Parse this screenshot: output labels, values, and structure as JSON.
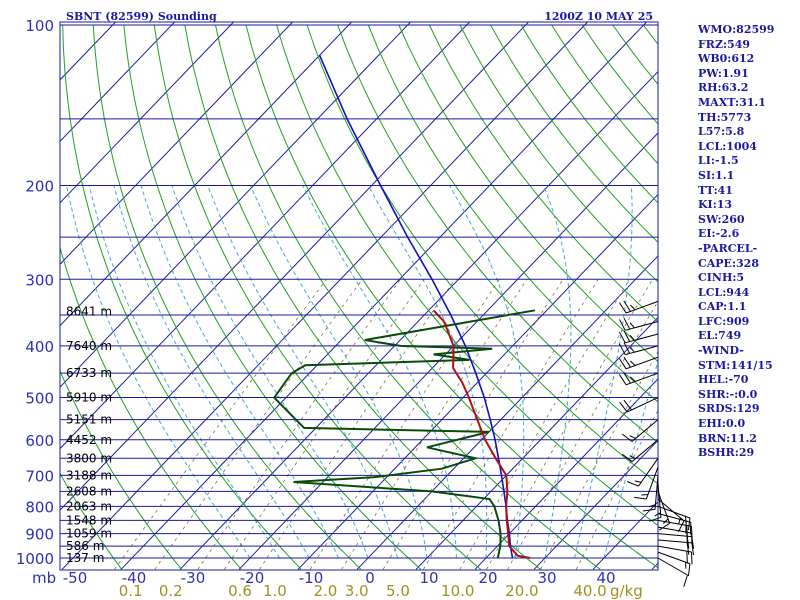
{
  "header": {
    "station": "SBNT (82599) Sounding",
    "time": "1200Z 10 MAY 25"
  },
  "indices": [
    "WMO:82599",
    "FRZ:549",
    "WB0:612",
    "PW:1.91",
    "RH:63.2",
    "MAXT:31.1",
    "TH:5773",
    "L57:5.8",
    "LCL:1004",
    "LI:-1.5",
    "SI:1.1",
    "TT:41",
    "KI:13",
    "SW:260",
    "EI:-2.6",
    "-PARCEL-",
    "CAPE:328",
    "CINH:5",
    "LCL:944",
    "CAP:1.1",
    "LFC:909",
    "EL:749",
    "-WIND-",
    "STM:141/15",
    "HEL:-70",
    "SHR:-:0.0",
    "SRDS:129",
    "EHI:0.0",
    "BRN:11.2",
    "BSHR:29"
  ],
  "colors": {
    "isobar": "#1a1aa0",
    "isotherm": "#1a1aa0",
    "dry_adiabat": "#20a020",
    "moist_adiabat": "#40a8d0",
    "mixing_ratio": "#807040",
    "temperature": "#b01010",
    "dewpoint": "#0a4a0a",
    "parcel": "#1010c0",
    "wind_barb": "#000000"
  },
  "chart_data": {
    "type": "line",
    "diagram": "skew-t log-p",
    "pressure_axis": {
      "unit": "mb",
      "range": [
        1000,
        100
      ],
      "scale": "log",
      "ticks": [
        100,
        200,
        300,
        400,
        500,
        600,
        700,
        800,
        900,
        1000
      ]
    },
    "temperature_axis": {
      "range": [
        -50,
        50
      ],
      "ticks": [
        -50,
        -40,
        -30,
        -20,
        -10,
        0,
        10,
        20,
        30,
        40
      ],
      "tick_labels": [
        "-50",
        "-40",
        "-30",
        "-20",
        "-10",
        "0",
        "10",
        "20",
        "30",
        "40"
      ],
      "skewed": true
    },
    "mixing_ratio_labels": [
      "0.1",
      "0.2",
      "0.6",
      "1.0",
      "2.0",
      "3.0",
      "5.0",
      "10.0",
      "20.0",
      "40.0"
    ],
    "mixing_ratio_values": [
      0.1,
      0.2,
      0.6,
      1.0,
      2.0,
      3.0,
      5.0,
      10.0,
      20.0,
      40.0
    ],
    "mixing_ratio_unit": "g/kg",
    "height_levels": [
      {
        "p": 345,
        "label": "8641 m"
      },
      {
        "p": 400,
        "label": "7640 m"
      },
      {
        "p": 450,
        "label": "6733 m"
      },
      {
        "p": 500,
        "label": "5910 m"
      },
      {
        "p": 550,
        "label": "5151 m"
      },
      {
        "p": 600,
        "label": "4452 m"
      },
      {
        "p": 650,
        "label": "3800 m"
      },
      {
        "p": 700,
        "label": "3188 m"
      },
      {
        "p": 750,
        "label": "2608 m"
      },
      {
        "p": 800,
        "label": "2063 m"
      },
      {
        "p": 850,
        "label": "1548 m"
      },
      {
        "p": 900,
        "label": "1059 m"
      },
      {
        "p": 950,
        "label": "586 m"
      },
      {
        "p": 1000,
        "label": "137 m"
      }
    ],
    "temperature_profile": [
      {
        "p": 1000,
        "t": 27.5
      },
      {
        "p": 990,
        "t": 25.0
      },
      {
        "p": 950,
        "t": 22.0
      },
      {
        "p": 900,
        "t": 19.8
      },
      {
        "p": 850,
        "t": 17.4
      },
      {
        "p": 800,
        "t": 15.0
      },
      {
        "p": 750,
        "t": 12.8
      },
      {
        "p": 700,
        "t": 10.0
      },
      {
        "p": 650,
        "t": 5.4
      },
      {
        "p": 600,
        "t": 0.6
      },
      {
        "p": 550,
        "t": -4.0
      },
      {
        "p": 500,
        "t": -9.0
      },
      {
        "p": 470,
        "t": -12.4
      },
      {
        "p": 440,
        "t": -16.5
      },
      {
        "p": 400,
        "t": -20.0
      },
      {
        "p": 360,
        "t": -25.6
      },
      {
        "p": 343,
        "t": -29.2
      }
    ],
    "dewpoint_profile": [
      {
        "p": 1000,
        "t": 22.0
      },
      {
        "p": 950,
        "t": 20.5
      },
      {
        "p": 900,
        "t": 18.5
      },
      {
        "p": 850,
        "t": 16.0
      },
      {
        "p": 800,
        "t": 13.0
      },
      {
        "p": 775,
        "t": 11.0
      },
      {
        "p": 750,
        "t": 0.0
      },
      {
        "p": 720,
        "t": -25.0
      },
      {
        "p": 705,
        "t": -12.0
      },
      {
        "p": 680,
        "t": -2.0
      },
      {
        "p": 650,
        "t": 2.0
      },
      {
        "p": 620,
        "t": -8.0
      },
      {
        "p": 580,
        "t": 0.0
      },
      {
        "p": 570,
        "t": -32.0
      },
      {
        "p": 500,
        "t": -42.0
      },
      {
        "p": 450,
        "t": -43.0
      },
      {
        "p": 435,
        "t": -42.0
      },
      {
        "p": 425,
        "t": -15.0
      },
      {
        "p": 415,
        "t": -22.0
      },
      {
        "p": 405,
        "t": -13.0
      },
      {
        "p": 400,
        "t": -29.0
      },
      {
        "p": 390,
        "t": -36.0
      },
      {
        "p": 343,
        "t": -12.0
      }
    ],
    "parcel_profile": [
      {
        "p": 1000,
        "t": 24.5
      },
      {
        "p": 950,
        "t": 22.2
      },
      {
        "p": 900,
        "t": 20.0
      },
      {
        "p": 850,
        "t": 17.5
      },
      {
        "p": 800,
        "t": 15.0
      },
      {
        "p": 750,
        "t": 12.2
      },
      {
        "p": 700,
        "t": 9.2
      },
      {
        "p": 650,
        "t": 5.9
      },
      {
        "p": 600,
        "t": 2.3
      },
      {
        "p": 550,
        "t": -1.8
      },
      {
        "p": 500,
        "t": -6.4
      },
      {
        "p": 450,
        "t": -11.8
      },
      {
        "p": 400,
        "t": -18.0
      },
      {
        "p": 350,
        "t": -25.5
      },
      {
        "p": 300,
        "t": -34.5
      },
      {
        "p": 250,
        "t": -45.5
      },
      {
        "p": 200,
        "t": -58.5
      },
      {
        "p": 150,
        "t": -75.0
      },
      {
        "p": 114,
        "t": -90.0
      }
    ],
    "wind_barbs": [
      {
        "p": 1000,
        "dir": 120,
        "kt": 10
      },
      {
        "p": 975,
        "dir": 110,
        "kt": 15
      },
      {
        "p": 950,
        "dir": 100,
        "kt": 20
      },
      {
        "p": 925,
        "dir": 95,
        "kt": 20
      },
      {
        "p": 900,
        "dir": 95,
        "kt": 20
      },
      {
        "p": 875,
        "dir": 100,
        "kt": 20
      },
      {
        "p": 850,
        "dir": 100,
        "kt": 20
      },
      {
        "p": 825,
        "dir": 105,
        "kt": 20
      },
      {
        "p": 800,
        "dir": 110,
        "kt": 15
      },
      {
        "p": 775,
        "dir": 130,
        "kt": 15
      },
      {
        "p": 750,
        "dir": 160,
        "kt": 15
      },
      {
        "p": 725,
        "dir": 175,
        "kt": 15
      },
      {
        "p": 700,
        "dir": 185,
        "kt": 15
      },
      {
        "p": 675,
        "dir": 200,
        "kt": 15
      },
      {
        "p": 650,
        "dir": 215,
        "kt": 15
      },
      {
        "p": 600,
        "dir": 230,
        "kt": 15
      },
      {
        "p": 550,
        "dir": 230,
        "kt": 15
      },
      {
        "p": 500,
        "dir": 245,
        "kt": 20
      },
      {
        "p": 450,
        "dir": 250,
        "kt": 25
      },
      {
        "p": 420,
        "dir": 250,
        "kt": 25
      },
      {
        "p": 400,
        "dir": 255,
        "kt": 25
      },
      {
        "p": 380,
        "dir": 255,
        "kt": 25
      },
      {
        "p": 360,
        "dir": 255,
        "kt": 25
      },
      {
        "p": 330,
        "dir": 250,
        "kt": 25
      }
    ],
    "grid": true
  }
}
